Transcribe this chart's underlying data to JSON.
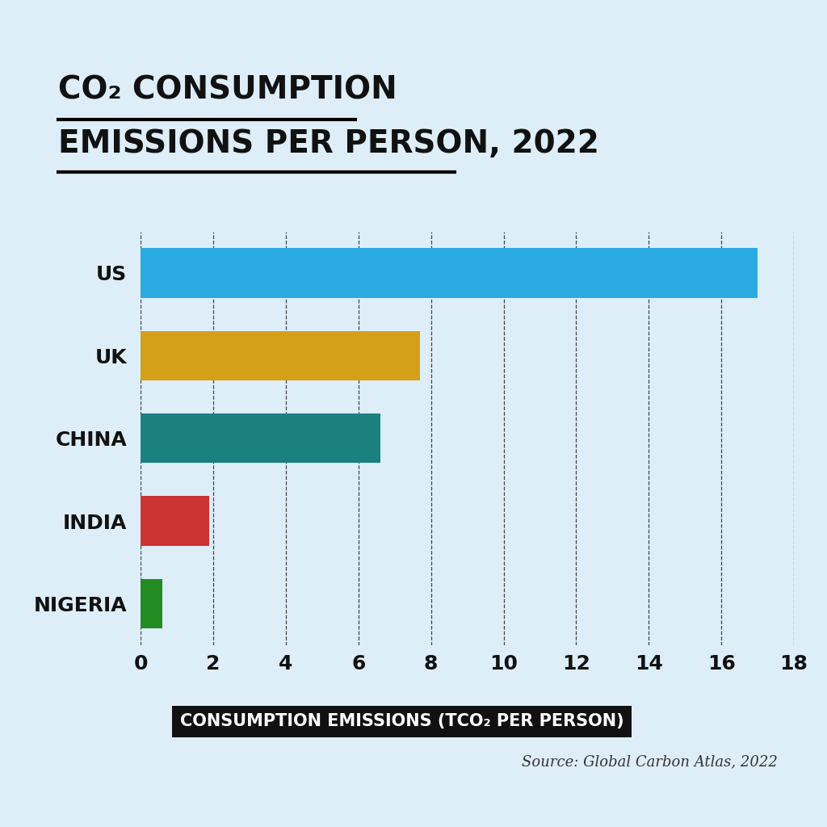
{
  "title_line1": "CO₂ CONSUMPTION",
  "title_line2": "EMISSIONS PER PERSON, 2022",
  "categories": [
    "US",
    "UK",
    "CHINA",
    "INDIA",
    "NIGERIA"
  ],
  "values": [
    17.0,
    7.7,
    6.6,
    1.9,
    0.6
  ],
  "colors": [
    "#29ABE2",
    "#D4A017",
    "#1A8080",
    "#CC3333",
    "#228B22"
  ],
  "xlabel": "CONSUMPTION EMISSIONS (TCO₂ PER PERSON)",
  "xlim": [
    0,
    18
  ],
  "xticks": [
    0,
    2,
    4,
    6,
    8,
    10,
    12,
    14,
    16,
    18
  ],
  "background_color": "#DDEEF8",
  "source_text": "Source: Global Carbon Atlas, 2022",
  "title_fontsize": 28,
  "tick_fontsize": 18,
  "ylabel_fontsize": 18,
  "xlabel_bg_color": "#111111",
  "xlabel_text_color": "#ffffff",
  "bar_height": 0.6
}
